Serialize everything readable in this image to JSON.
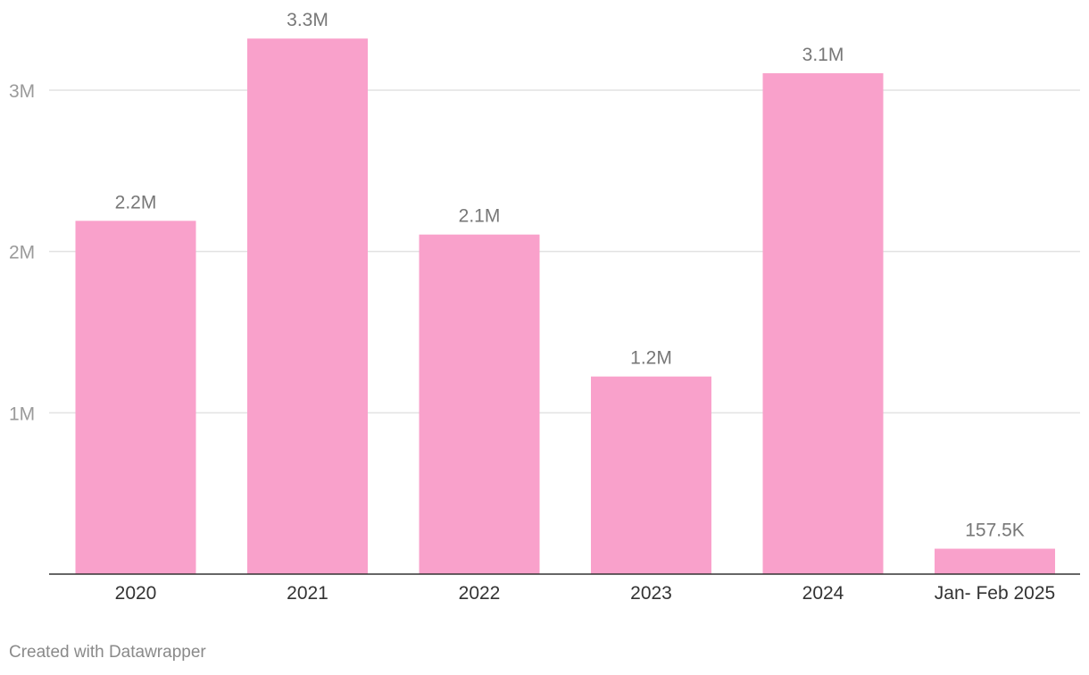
{
  "chart_data": {
    "type": "bar",
    "title": "",
    "xlabel": "",
    "ylabel": "",
    "categories": [
      "2020",
      "2021",
      "2022",
      "2023",
      "2024",
      "Jan- Feb 2025"
    ],
    "values": [
      2190000,
      3320000,
      2105000,
      1225000,
      3105000,
      157500
    ],
    "data_labels": [
      "2.2M",
      "3.3M",
      "2.1M",
      "1.2M",
      "3.1M",
      "157.5K"
    ],
    "ylim": [
      0,
      3500000
    ],
    "yticks": [
      1000000,
      2000000,
      3000000
    ],
    "ytick_labels": [
      "1M",
      "2M",
      "3M"
    ],
    "grid": true,
    "bar_color": "#f9a1cb"
  },
  "footer": {
    "credit": "Created with Datawrapper"
  }
}
